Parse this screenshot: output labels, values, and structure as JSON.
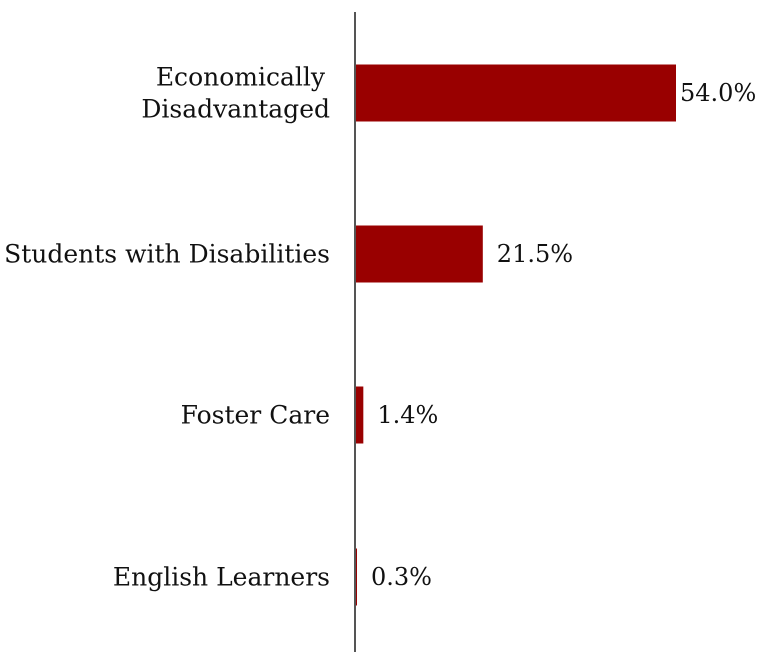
{
  "chart_data": {
    "type": "bar",
    "orientation": "horizontal",
    "categories": [
      [
        "Economically",
        "Disadvantaged"
      ],
      [
        "Students with Disabilities"
      ],
      [
        "Foster Care"
      ],
      [
        "English Learners"
      ]
    ],
    "values": [
      54.0,
      21.5,
      1.4,
      0.3
    ],
    "value_labels": [
      "54.0%",
      "21.5%",
      "1.4%",
      "0.3%"
    ],
    "title": "",
    "xlabel": "",
    "ylabel": "",
    "xlim": [
      0,
      60
    ],
    "grid": false,
    "legend": "none"
  },
  "colors": {
    "bar": "#990000",
    "axis": "#555555",
    "text": "#111111"
  }
}
